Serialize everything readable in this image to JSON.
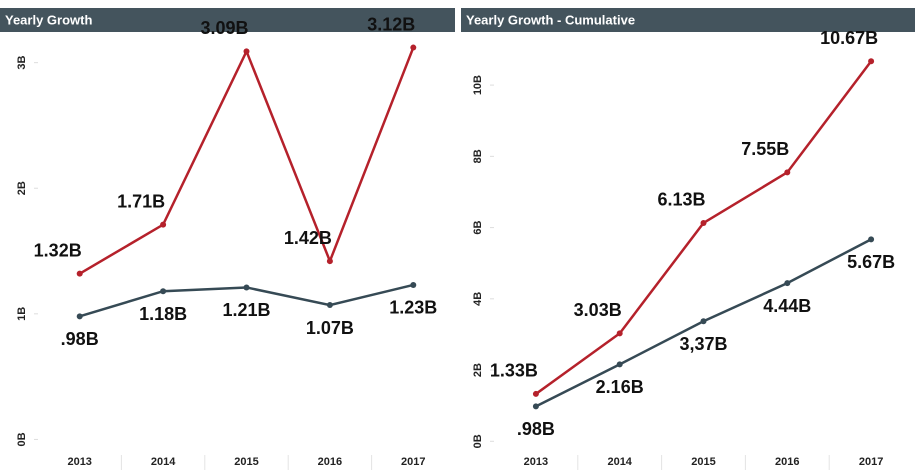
{
  "chart_data": [
    {
      "type": "line",
      "title": "Yearly Growth",
      "categories": [
        "2013",
        "2014",
        "2015",
        "2016",
        "2017"
      ],
      "series": [
        {
          "color": "#b5212b",
          "values": [
            1.32,
            1.71,
            3.09,
            1.42,
            3.12
          ],
          "value_labels": [
            "1.32B",
            "1.71B",
            "3.09B",
            "1.42B",
            "3.12B"
          ]
        },
        {
          "color": "#364a55",
          "values": [
            0.98,
            1.18,
            1.21,
            1.07,
            1.23
          ],
          "value_labels": [
            ".98B",
            "1.18B",
            "1.21B",
            "1.07B",
            "1.23B"
          ]
        }
      ],
      "ylim": [
        -0.1,
        3.22
      ],
      "yticks": [
        {
          "value": 0,
          "label": "0B"
        },
        {
          "value": 1,
          "label": "1B"
        },
        {
          "value": 2,
          "label": "2B"
        },
        {
          "value": 3,
          "label": "3B"
        }
      ],
      "grid": false
    },
    {
      "type": "line",
      "title": "Yearly Growth - Cumulative",
      "categories": [
        "2013",
        "2014",
        "2015",
        "2016",
        "2017"
      ],
      "series": [
        {
          "color": "#b5212b",
          "values": [
            1.33,
            3.03,
            6.13,
            7.55,
            10.67
          ],
          "value_labels": [
            "1.33B",
            "3.03B",
            "6.13B",
            "7.55B",
            "10.67B"
          ]
        },
        {
          "color": "#364a55",
          "values": [
            0.98,
            2.16,
            3.37,
            4.44,
            5.67
          ],
          "value_labels": [
            ".98B",
            "2.16B",
            "3,37B",
            "4.44B",
            "5.67B"
          ]
        }
      ],
      "ylim": [
        -0.3,
        11.35
      ],
      "yticks": [
        {
          "value": 0,
          "label": "0B"
        },
        {
          "value": 2,
          "label": "2B"
        },
        {
          "value": 4,
          "label": "4B"
        },
        {
          "value": 6,
          "label": "6B"
        },
        {
          "value": 8,
          "label": "8B"
        },
        {
          "value": 10,
          "label": "10B"
        }
      ],
      "grid": false
    }
  ]
}
